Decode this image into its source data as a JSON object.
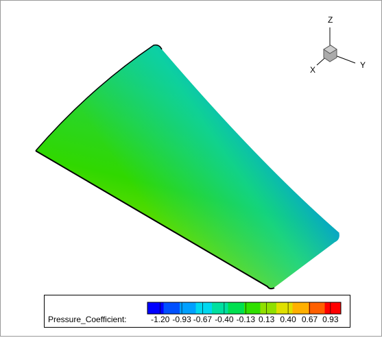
{
  "axes_triad": {
    "x_label": "X",
    "y_label": "Y",
    "z_label": "Z"
  },
  "colorbar": {
    "title": "Pressure_Coefficient:",
    "range": [
      -1.36,
      1.06
    ],
    "colors": [
      "#0000ff",
      "#0050ff",
      "#00a0ff",
      "#00d8f0",
      "#00e0a0",
      "#00e050",
      "#30e000",
      "#90e000",
      "#e0e000",
      "#ffb000",
      "#ff6000",
      "#ff0000"
    ],
    "ticks": [
      {
        "value": -1.2,
        "label": "-1.20"
      },
      {
        "value": -0.93,
        "label": "-0.93"
      },
      {
        "value": -0.67,
        "label": "-0.67"
      },
      {
        "value": -0.4,
        "label": "-0.40"
      },
      {
        "value": -0.13,
        "label": "-0.13"
      },
      {
        "value": 0.13,
        "label": "0.13"
      },
      {
        "value": 0.4,
        "label": "0.40"
      },
      {
        "value": 0.67,
        "label": "0.67"
      },
      {
        "value": 0.93,
        "label": "0.93"
      }
    ]
  }
}
